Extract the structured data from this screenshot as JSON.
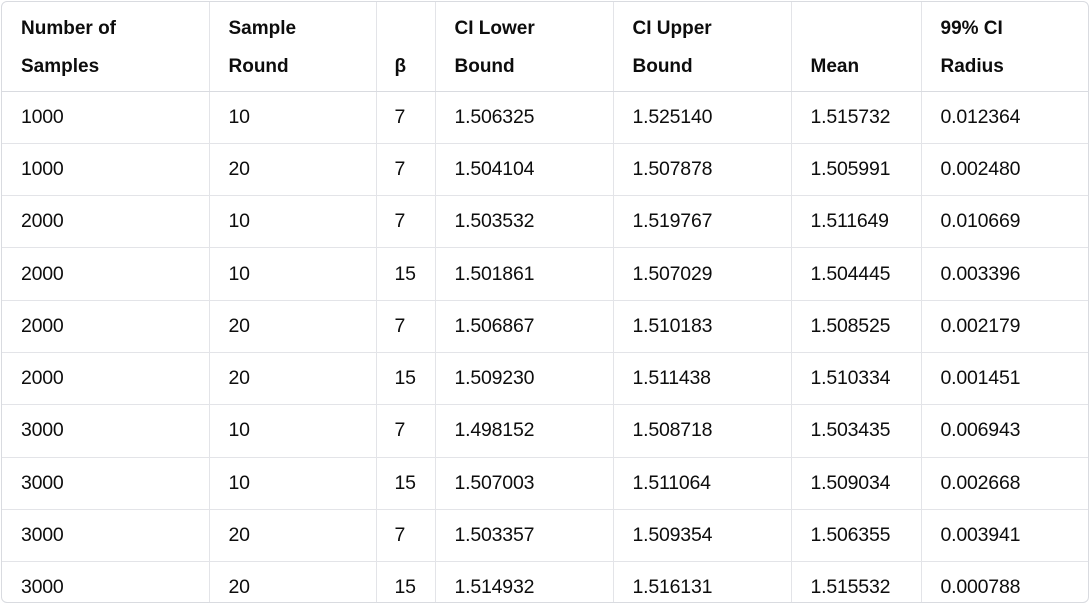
{
  "table": {
    "headers": [
      {
        "line1": "Number of",
        "line2": "Samples"
      },
      {
        "line1": "Sample",
        "line2": "Round"
      },
      {
        "line1": "",
        "line2": "β"
      },
      {
        "line1": "CI Lower",
        "line2": "Bound"
      },
      {
        "line1": "CI Upper",
        "line2": "Bound"
      },
      {
        "line1": "",
        "line2": "Mean"
      },
      {
        "line1": "99% CI",
        "line2": "Radius"
      }
    ],
    "rows": [
      [
        "1000",
        "10",
        "7",
        "1.506325",
        "1.525140",
        "1.515732",
        "0.012364"
      ],
      [
        "1000",
        "20",
        "7",
        "1.504104",
        "1.507878",
        "1.505991",
        "0.002480"
      ],
      [
        "2000",
        "10",
        "7",
        "1.503532",
        "1.519767",
        "1.511649",
        "0.010669"
      ],
      [
        "2000",
        "10",
        "15",
        "1.501861",
        "1.507029",
        "1.504445",
        "0.003396"
      ],
      [
        "2000",
        "20",
        "7",
        "1.506867",
        "1.510183",
        "1.508525",
        "0.002179"
      ],
      [
        "2000",
        "20",
        "15",
        "1.509230",
        "1.511438",
        "1.510334",
        "0.001451"
      ],
      [
        "3000",
        "10",
        "7",
        "1.498152",
        "1.508718",
        "1.503435",
        "0.006943"
      ],
      [
        "3000",
        "10",
        "15",
        "1.507003",
        "1.511064",
        "1.509034",
        "0.002668"
      ],
      [
        "3000",
        "20",
        "7",
        "1.503357",
        "1.509354",
        "1.506355",
        "0.003941"
      ],
      [
        "3000",
        "20",
        "15",
        "1.514932",
        "1.516131",
        "1.515532",
        "0.000788"
      ]
    ]
  }
}
